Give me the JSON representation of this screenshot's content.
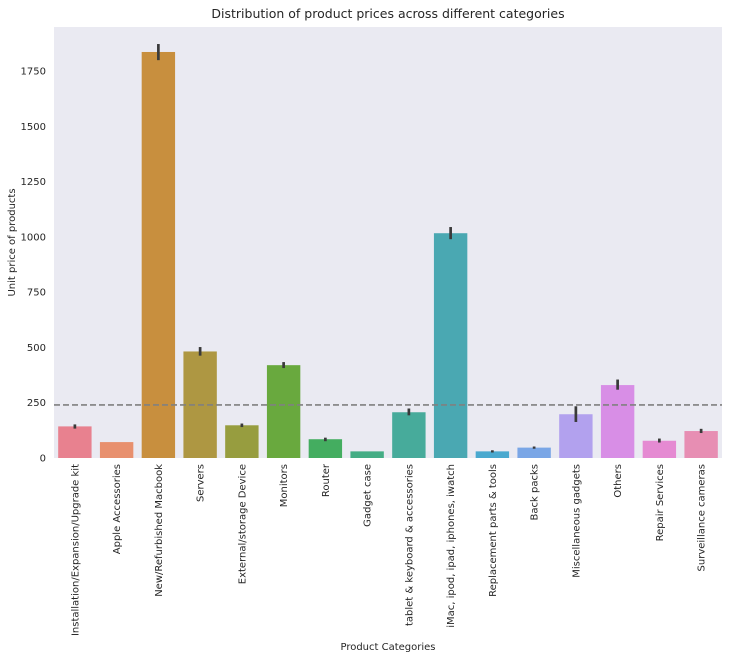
{
  "chart_data": {
    "type": "bar",
    "title": "Distribution of product prices across different categories",
    "xlabel": "Product Categories",
    "ylabel": "Unit price of products",
    "ylim": [
      0,
      1950
    ],
    "yticks": [
      0,
      250,
      500,
      750,
      1000,
      1250,
      1500,
      1750
    ],
    "grid": false,
    "categories": [
      "Installation/Expansion/Upgrade kit",
      "Apple Accessories",
      "New/Refurbished Macbook",
      "Servers",
      "External/storage Device",
      "Monitors",
      "Router",
      "Gadget case",
      "tablet & keyboard & accessories",
      "iMac, ipod, ipad,  iphones, iwatch",
      "Replacement parts & tools",
      "Back packs",
      "Miscellaneous gadgets",
      "Others",
      "Repair Services",
      "Surveillance cameras"
    ],
    "values": [
      143,
      72,
      1837,
      482,
      148,
      420,
      85,
      30,
      207,
      1017,
      30,
      47,
      198,
      330,
      78,
      122
    ],
    "error_low": [
      133,
      72,
      1800,
      463,
      140,
      407,
      76,
      30,
      193,
      990,
      25,
      42,
      163,
      309,
      70,
      113
    ],
    "error_high": [
      152,
      72,
      1873,
      502,
      156,
      434,
      92,
      30,
      224,
      1045,
      35,
      52,
      234,
      355,
      88,
      132
    ],
    "reference_line": 240,
    "colors": [
      "#e8818f",
      "#e8906e",
      "#c88f3e",
      "#ae9742",
      "#979d3f",
      "#69a93e",
      "#44ad60",
      "#45ad85",
      "#47ab9b",
      "#4aa8b2",
      "#4aa9cf",
      "#7aa6e6",
      "#b2a1ee",
      "#d88ee6",
      "#e58ad2",
      "#e78eb3"
    ],
    "background_color": "#eaeaf2",
    "reference_line_color": "#808080",
    "error_bar_color": "#3a3a3a"
  }
}
